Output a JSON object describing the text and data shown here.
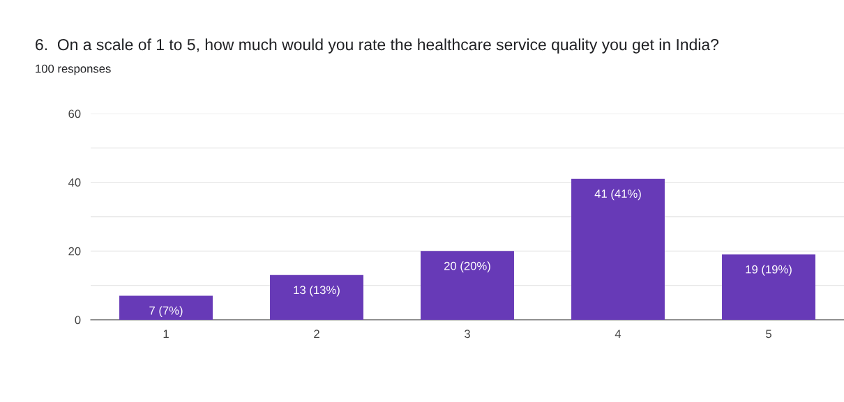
{
  "chart_data": {
    "type": "bar",
    "title": "6.  On a scale of 1 to 5, how much would you rate the healthcare service quality you get in India?",
    "subtitle": "100 responses",
    "categories": [
      "1",
      "2",
      "3",
      "4",
      "5"
    ],
    "values": [
      7,
      13,
      20,
      41,
      19
    ],
    "value_labels": [
      "7 (7%)",
      "13 (13%)",
      "20 (20%)",
      "41 (41%)",
      "19 (19%)"
    ],
    "color": "#673ab7",
    "ylim": [
      0,
      60
    ],
    "yticks": [
      0,
      {
        "value": 10,
        "label": null
      },
      20,
      {
        "value": 30,
        "label": null
      },
      40,
      {
        "value": 50,
        "label": null
      },
      60
    ],
    "grid": "y"
  }
}
